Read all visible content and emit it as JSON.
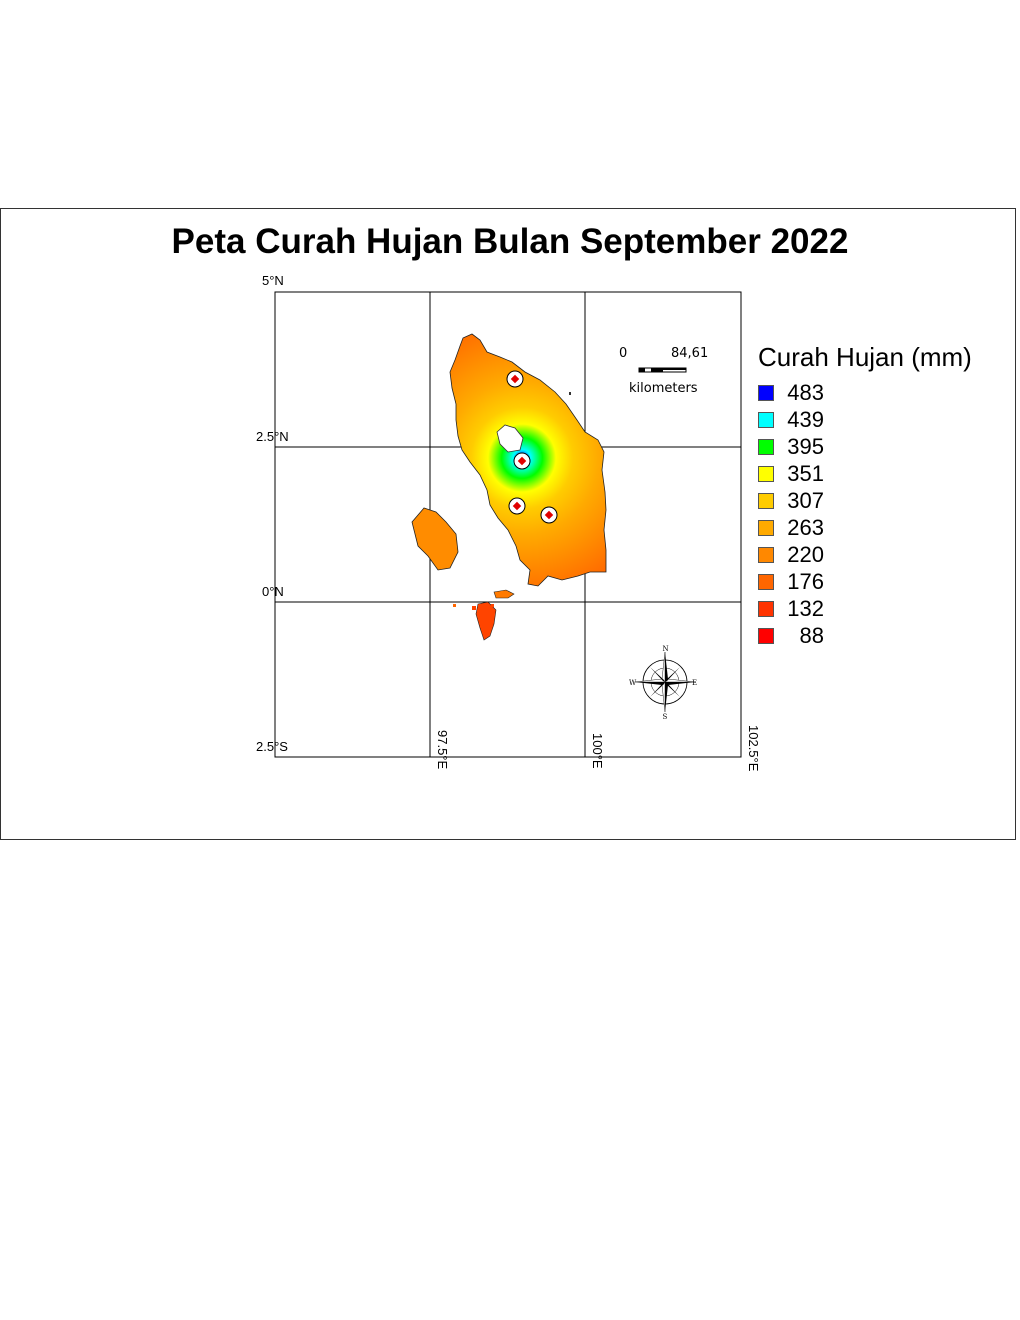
{
  "map": {
    "title": "Peta Curah Hujan Bulan September 2022",
    "lat_ticks": [
      "5°N",
      "2.5°N",
      "0°N",
      "2.5°S"
    ],
    "lon_ticks": [
      "97.5°E",
      "100°E",
      "102.5°E"
    ],
    "stations": 4
  },
  "legend": {
    "title": "Curah Hujan (mm)",
    "items": [
      {
        "label": "483",
        "color": "#0000ff"
      },
      {
        "label": "439",
        "color": "#00ffff"
      },
      {
        "label": "395",
        "color": "#00ff00"
      },
      {
        "label": "351",
        "color": "#ffff00"
      },
      {
        "label": "307",
        "color": "#ffcc00"
      },
      {
        "label": "263",
        "color": "#ffaa00"
      },
      {
        "label": "220",
        "color": "#ff8800"
      },
      {
        "label": "176",
        "color": "#ff6600"
      },
      {
        "label": "132",
        "color": "#ff3300"
      },
      {
        "label": "88",
        "color": "#ff0000"
      }
    ]
  },
  "scale_bar": {
    "zero": "0",
    "max": "84,61",
    "unit": "kilometers"
  },
  "compass": {
    "n": "N",
    "s": "S",
    "e": "E",
    "w": "W"
  }
}
